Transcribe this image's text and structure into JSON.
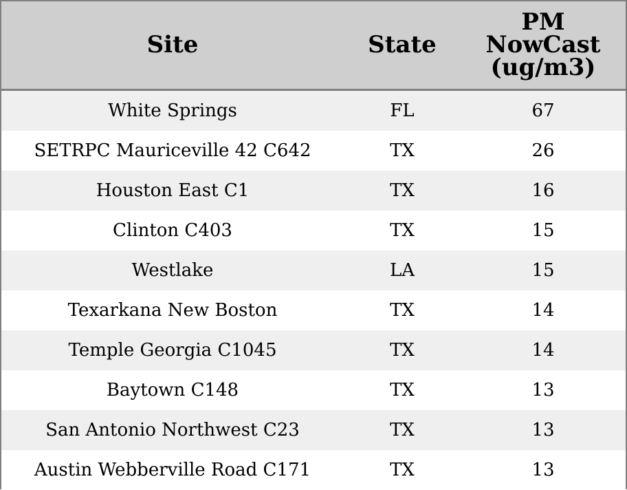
{
  "chart_data": {
    "type": "table",
    "columns": [
      "Site",
      "State",
      "PM NowCast (ug/m3)"
    ],
    "header_lines": {
      "pm": [
        "PM",
        "NowCast",
        "(ug/m3)"
      ]
    },
    "rows": [
      {
        "site": "White Springs",
        "state": "FL",
        "pm": "67"
      },
      {
        "site": "SETRPC Mauriceville 42 C642",
        "state": "TX",
        "pm": "26"
      },
      {
        "site": "Houston East C1",
        "state": "TX",
        "pm": "16"
      },
      {
        "site": "Clinton C403",
        "state": "TX",
        "pm": "15"
      },
      {
        "site": "Westlake",
        "state": "LA",
        "pm": "15"
      },
      {
        "site": "Texarkana New Boston",
        "state": "TX",
        "pm": "14"
      },
      {
        "site": "Temple Georgia C1045",
        "state": "TX",
        "pm": "14"
      },
      {
        "site": "Baytown C148",
        "state": "TX",
        "pm": "13"
      },
      {
        "site": "San Antonio Northwest C23",
        "state": "TX",
        "pm": "13"
      },
      {
        "site": "Austin Webberville Road C171",
        "state": "TX",
        "pm": "13"
      }
    ]
  },
  "colors": {
    "header_bg": "#cfcfcf",
    "row_alt_bg": "#efefef",
    "row_bg": "#ffffff",
    "border": "#7f7f7f"
  }
}
